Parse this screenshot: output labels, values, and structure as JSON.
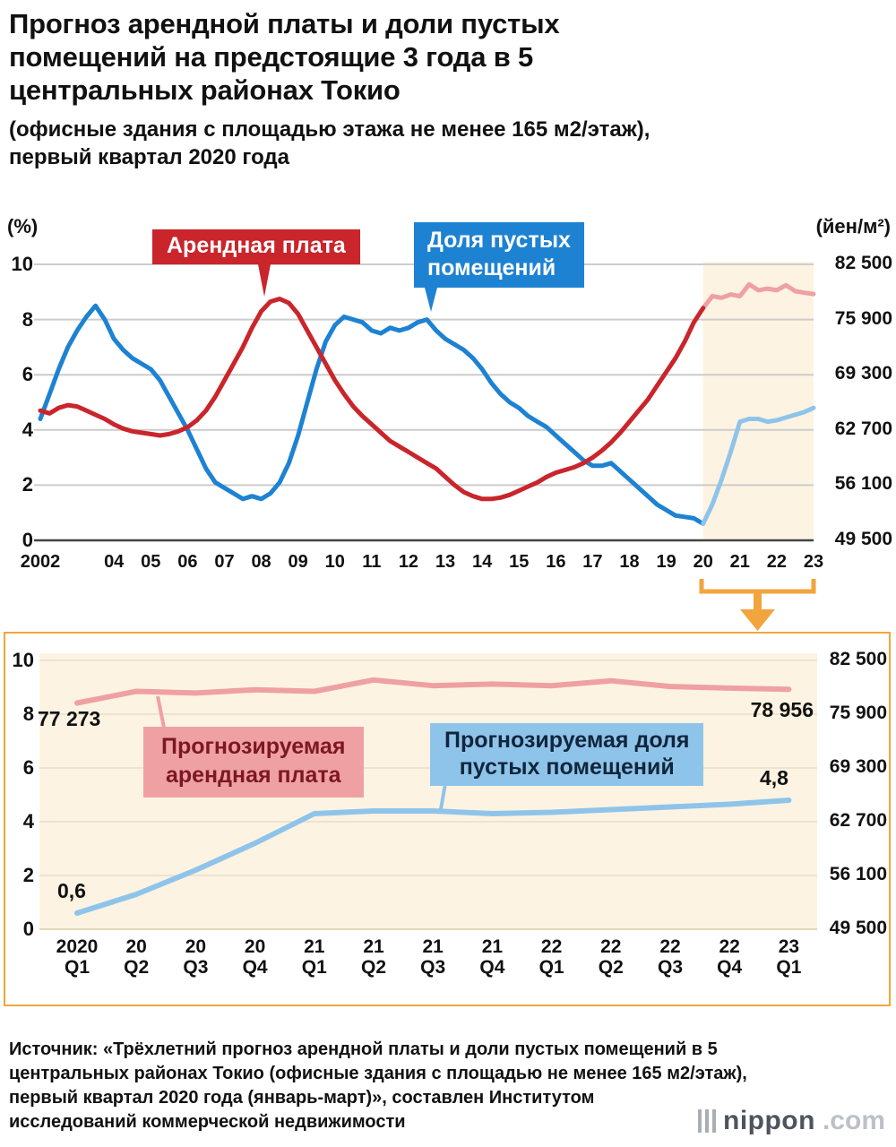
{
  "header": {
    "title": "Прогноз арендной платы и доли пустых\nпомещений на предстоящие 3 года в 5\nцентральных районах Токио",
    "subtitle": "(офисные здания с площадью этажа не менее 165 м2/этаж),\nпервый квартал 2020 года"
  },
  "labels": {
    "rent": "Арендная плата",
    "vacancy": "Доля пустых\nпомещений",
    "forecast_rent": "Прогнозируемая\nарендная плата",
    "forecast_vacancy": "Прогнозируемая доля\nпустых помещений"
  },
  "colors": {
    "red": "#c9252b",
    "pink": "#efa0a3",
    "blue": "#1e82d2",
    "light_blue": "#8fc4ea",
    "forecast_bg": "#fdf3e2",
    "bracket": "#f2a43d",
    "grid": "#cccccc",
    "axis": "#444444",
    "pink_text": "#7c1823",
    "lblue_text": "#10263c"
  },
  "chart_data": [
    {
      "type": "line",
      "left_unit": "(%)",
      "right_unit": "(йен/м²)",
      "left_axis": {
        "min": 0,
        "max": 10,
        "ticks": [
          0,
          2,
          4,
          6,
          8,
          10
        ]
      },
      "right_axis": {
        "min": 49500,
        "max": 82500,
        "step": 6600,
        "tick_labels": [
          "49 500",
          "56 100",
          "62 700",
          "69 300",
          "75 900",
          "82 500"
        ]
      },
      "x_start_year": 2002,
      "total_quarters": 84,
      "forecast_start_quarter": 72,
      "x_ticks": [
        {
          "label": "2002",
          "q": 0
        },
        {
          "label": "04",
          "q": 8
        },
        {
          "label": "05",
          "q": 12
        },
        {
          "label": "06",
          "q": 16
        },
        {
          "label": "07",
          "q": 20
        },
        {
          "label": "08",
          "q": 24
        },
        {
          "label": "09",
          "q": 28
        },
        {
          "label": "10",
          "q": 32
        },
        {
          "label": "11",
          "q": 36
        },
        {
          "label": "12",
          "q": 40
        },
        {
          "label": "13",
          "q": 44
        },
        {
          "label": "14",
          "q": 48
        },
        {
          "label": "15",
          "q": 52
        },
        {
          "label": "16",
          "q": 56
        },
        {
          "label": "17",
          "q": 60
        },
        {
          "label": "18",
          "q": 64
        },
        {
          "label": "19",
          "q": 68
        },
        {
          "label": "20",
          "q": 72
        },
        {
          "label": "21",
          "q": 76
        },
        {
          "label": "22",
          "q": 80
        },
        {
          "label": "23",
          "q": 84
        }
      ],
      "series": [
        {
          "key": "vacancy-history",
          "name": "Доля пустых помещений",
          "axis": "left",
          "unit": "%",
          "color": "#1e82d2",
          "start_quarter": 0,
          "values": [
            4.4,
            5.3,
            6.2,
            7.0,
            7.6,
            8.1,
            8.5,
            8.0,
            7.3,
            6.9,
            6.6,
            6.4,
            6.2,
            5.8,
            5.2,
            4.6,
            4.0,
            3.3,
            2.6,
            2.1,
            1.9,
            1.7,
            1.5,
            1.6,
            1.5,
            1.7,
            2.1,
            2.8,
            3.8,
            5.0,
            6.2,
            7.2,
            7.8,
            8.1,
            8.0,
            7.9,
            7.6,
            7.5,
            7.7,
            7.6,
            7.7,
            7.9,
            8.0,
            7.6,
            7.3,
            7.1,
            6.9,
            6.6,
            6.2,
            5.7,
            5.3,
            5.0,
            4.8,
            4.5,
            4.3,
            4.1,
            3.8,
            3.5,
            3.2,
            2.9,
            2.7,
            2.7,
            2.8,
            2.5,
            2.2,
            1.9,
            1.6,
            1.3,
            1.1,
            0.9,
            0.85,
            0.8,
            0.6
          ]
        },
        {
          "key": "vacancy-forecast",
          "name": "Доля пустых помещений (прогноз)",
          "axis": "left",
          "unit": "%",
          "color": "#8fc4ea",
          "start_quarter": 72,
          "values": [
            0.6,
            1.3,
            2.2,
            3.2,
            4.3,
            4.4,
            4.4,
            4.3,
            4.35,
            4.45,
            4.55,
            4.65,
            4.8
          ]
        },
        {
          "key": "rent-forecast",
          "name": "Арендная плата (прогноз)",
          "axis": "right",
          "unit": "йен/м²",
          "color": "#efa0a3",
          "start_quarter": 72,
          "values": [
            77273,
            78700,
            78500,
            78900,
            78700,
            80100,
            79400,
            79600,
            79400,
            80000,
            79300,
            79100,
            78956
          ]
        },
        {
          "key": "rent-history",
          "name": "Арендная плата",
          "axis": "right",
          "unit": "йен/м²",
          "color": "#c9252b",
          "start_quarter": 0,
          "values": [
            65010,
            64680,
            65340,
            65670,
            65505,
            65010,
            64515,
            64020,
            63360,
            62865,
            62535,
            62370,
            62205,
            62040,
            62205,
            62535,
            63030,
            63855,
            65010,
            66660,
            68640,
            70620,
            72600,
            74910,
            76890,
            78045,
            78375,
            77880,
            76560,
            74580,
            72600,
            70620,
            68640,
            66990,
            65505,
            64350,
            63360,
            62370,
            61380,
            60720,
            60060,
            59400,
            58740,
            58080,
            57090,
            56100,
            55275,
            54780,
            54450,
            54450,
            54615,
            54945,
            55440,
            55935,
            56430,
            57090,
            57585,
            57915,
            58245,
            58740,
            59400,
            60225,
            61215,
            62370,
            63690,
            65010,
            66330,
            67980,
            69630,
            71280,
            73260,
            75570,
            77273
          ]
        }
      ]
    },
    {
      "type": "line",
      "left_axis": {
        "min": 0,
        "max": 10,
        "ticks": [
          0,
          2,
          4,
          6,
          8,
          10
        ]
      },
      "right_axis": {
        "min": 49500,
        "max": 82500,
        "step": 6600,
        "tick_labels": [
          "49 500",
          "56 100",
          "62 700",
          "69 300",
          "75 900",
          "82 500"
        ]
      },
      "categories": [
        {
          "year": "2020",
          "quarter": "Q1"
        },
        {
          "year": "20",
          "quarter": "Q2"
        },
        {
          "year": "20",
          "quarter": "Q3"
        },
        {
          "year": "20",
          "quarter": "Q4"
        },
        {
          "year": "21",
          "quarter": "Q1"
        },
        {
          "year": "21",
          "quarter": "Q2"
        },
        {
          "year": "21",
          "quarter": "Q3"
        },
        {
          "year": "21",
          "quarter": "Q4"
        },
        {
          "year": "22",
          "quarter": "Q1"
        },
        {
          "year": "22",
          "quarter": "Q2"
        },
        {
          "year": "22",
          "quarter": "Q3"
        },
        {
          "year": "22",
          "quarter": "Q4"
        },
        {
          "year": "23",
          "quarter": "Q1"
        }
      ],
      "series": [
        {
          "key": "forecast-rent",
          "name": "Прогнозируемая арендная плата",
          "axis": "right",
          "unit": "йен/м²",
          "color": "#efa0a3",
          "values": [
            77273,
            78700,
            78500,
            78900,
            78700,
            80100,
            79400,
            79600,
            79400,
            80000,
            79300,
            79100,
            78956
          ]
        },
        {
          "key": "forecast-vacancy",
          "name": "Прогнозируемая доля пустых помещений",
          "axis": "left",
          "unit": "%",
          "color": "#8fc4ea",
          "values": [
            0.6,
            1.3,
            2.2,
            3.2,
            4.3,
            4.4,
            4.4,
            4.3,
            4.35,
            4.45,
            4.55,
            4.65,
            4.8
          ]
        }
      ],
      "annotations": {
        "rent_start": "77 273",
        "rent_end": "78 956",
        "vacancy_start": "0,6",
        "vacancy_end": "4,8"
      }
    }
  ],
  "footer": {
    "source": "Источник: «Трёхлетний прогноз арендной платы и доли пустых помещений в 5\nцентральных районах Токио (офисные здания с площадью не менее 165 м2/этаж),\nпервый квартал 2020 года (январь-март)», составлен Институтом\nисследований коммерческой недвижимости",
    "logo_name": "nippon",
    "logo_tld": ".com"
  }
}
